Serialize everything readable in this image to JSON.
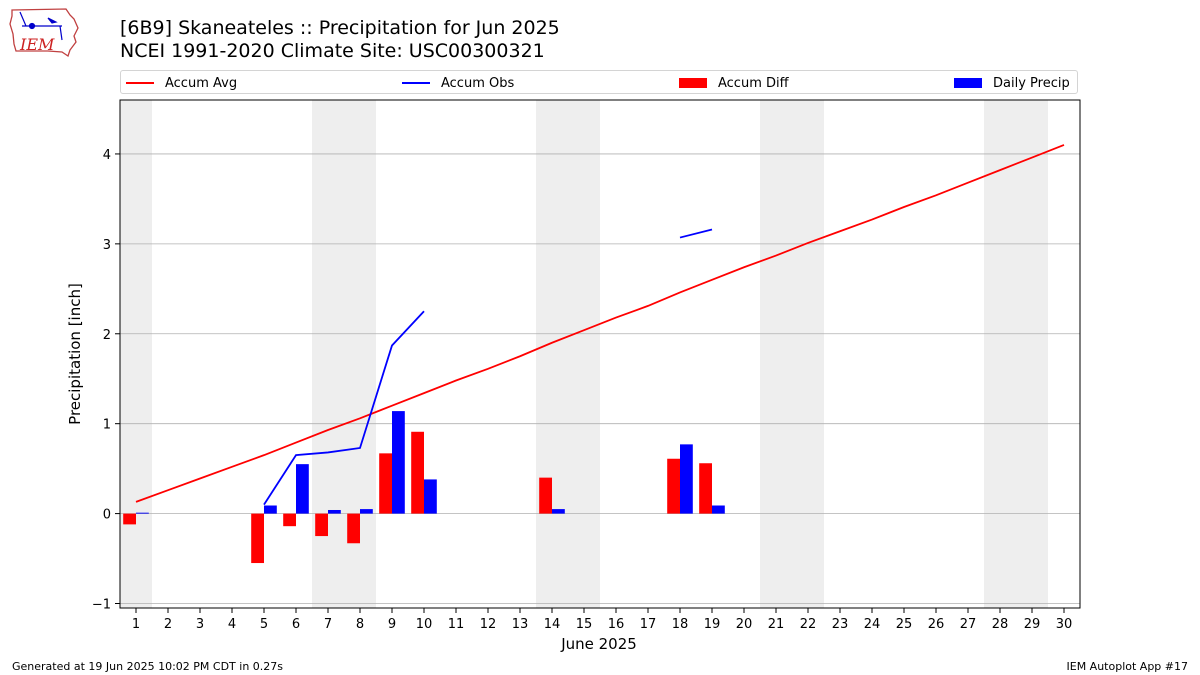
{
  "header": {
    "title_line1": "[6B9] Skaneateles :: Precipitation for Jun 2025",
    "title_line2": "NCEI 1991-2020 Climate Site: USC00300321"
  },
  "logo": {
    "text": "IEM"
  },
  "footer": {
    "generated": "Generated at 19 Jun 2025 10:02 PM CDT in 0.27s",
    "app": "IEM Autoplot App #17"
  },
  "colors": {
    "avg": "#ff0000",
    "obs": "#0000ff",
    "diff": "#ff0000",
    "daily": "#0000ff",
    "weekend_band": "#eeeeee",
    "grid": "#b0b0b0"
  },
  "chart_data": {
    "type": "bar",
    "xlabel": "June 2025",
    "ylabel": "Precipitation [inch]",
    "ylim": [
      -1.05,
      4.6
    ],
    "yticks": [
      -1,
      0,
      1,
      2,
      3,
      4
    ],
    "xlim": [
      0.5,
      30.5
    ],
    "days": [
      1,
      2,
      3,
      4,
      5,
      6,
      7,
      8,
      9,
      10,
      11,
      12,
      13,
      14,
      15,
      16,
      17,
      18,
      19,
      20,
      21,
      22,
      23,
      24,
      25,
      26,
      27,
      28,
      29,
      30
    ],
    "shaded_days": [
      [
        0.5,
        1.5
      ],
      [
        6.5,
        8.5
      ],
      [
        13.5,
        15.5
      ],
      [
        20.5,
        22.5
      ],
      [
        27.5,
        29.5
      ]
    ],
    "grid": "horizontal",
    "legend": {
      "position": "top",
      "entries": [
        "Accum Avg",
        "Accum Obs",
        "Accum Diff",
        "Daily Precip"
      ]
    },
    "series": [
      {
        "name": "Accum Avg",
        "kind": "line",
        "x": [
          1,
          2,
          3,
          4,
          5,
          6,
          7,
          8,
          9,
          10,
          11,
          12,
          13,
          14,
          15,
          16,
          17,
          18,
          19,
          20,
          21,
          22,
          23,
          24,
          25,
          26,
          27,
          28,
          29,
          30
        ],
        "values": [
          0.13,
          0.26,
          0.39,
          0.52,
          0.65,
          0.79,
          0.93,
          1.06,
          1.2,
          1.34,
          1.48,
          1.61,
          1.75,
          1.9,
          2.04,
          2.18,
          2.31,
          2.46,
          2.6,
          2.74,
          2.87,
          3.01,
          3.14,
          3.27,
          3.41,
          3.54,
          3.68,
          3.82,
          3.96,
          4.1
        ]
      },
      {
        "name": "Accum Obs",
        "kind": "line",
        "segments": [
          {
            "x": [
              5,
              6,
              7,
              8,
              9,
              10
            ],
            "values": [
              0.1,
              0.65,
              0.68,
              0.73,
              1.87,
              2.25
            ]
          },
          {
            "x": [
              18,
              19
            ],
            "values": [
              3.07,
              3.16
            ]
          }
        ]
      },
      {
        "name": "Accum Diff",
        "kind": "bar",
        "x": [
          1,
          5,
          6,
          7,
          8,
          9,
          10,
          14,
          18,
          19
        ],
        "values": [
          -0.12,
          -0.55,
          -0.14,
          -0.25,
          -0.33,
          0.67,
          0.91,
          0.4,
          0.61,
          0.56
        ]
      },
      {
        "name": "Daily Precip",
        "kind": "bar",
        "x": [
          1,
          5,
          6,
          7,
          8,
          9,
          10,
          14,
          18,
          19
        ],
        "values": [
          0.01,
          0.09,
          0.55,
          0.04,
          0.05,
          1.14,
          0.38,
          0.05,
          0.77,
          0.09
        ]
      }
    ]
  }
}
